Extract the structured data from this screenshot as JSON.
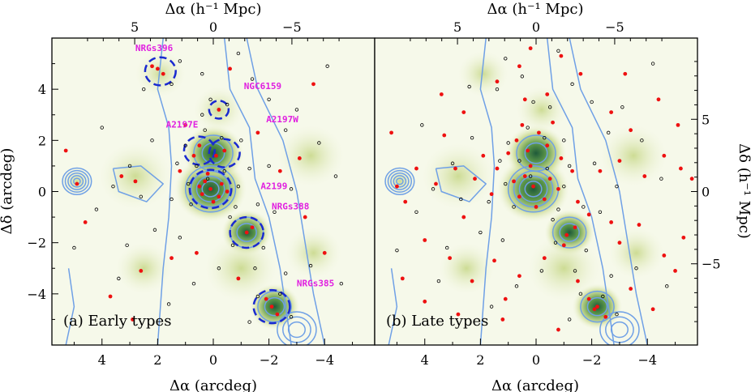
{
  "colors": {
    "background": "#ffffff",
    "density_light": "#eef3d8",
    "density_mid": "#c8d88a",
    "density_dark": "#1f5a3a",
    "contour": "#6fa0e6",
    "group_circle": "#1a2ad0",
    "group_label": "#e020e0",
    "early_or_late_points": "#ee1111",
    "other_points": "#000000"
  },
  "chart_data": [
    {
      "type": "scatter",
      "panel_label": "(a) Early types",
      "xlabel_bottom": "Δα (arcdeg)",
      "xlabel_top": "Δα (h⁻¹ Mpc)",
      "ylabel_left": "Δδ (arcdeg)",
      "xlim": [
        5.8,
        -5.8
      ],
      "ylim": [
        -6.0,
        6.0
      ],
      "x_ticks": [
        4,
        2,
        0,
        -2,
        -4
      ],
      "y_ticks": [
        -4,
        -2,
        0,
        2,
        4
      ],
      "top_ticks": [
        5,
        0,
        -5
      ],
      "top_tick_labels": [
        "5",
        "0",
        "−5"
      ],
      "bottom_tick_labels": [
        "4",
        "2",
        "0",
        "−2",
        "−4"
      ],
      "left_tick_labels": [
        "−4",
        "−2",
        "0",
        "2",
        "4"
      ],
      "groups": [
        {
          "label": "NRGs396",
          "x": 1.9,
          "y": 4.7,
          "r": 0.55
        },
        {
          "label": "NGC6159",
          "x": -0.2,
          "y": 3.2,
          "r": 0.35
        },
        {
          "label": "A2197E",
          "x": 0.5,
          "y": 1.6,
          "r": 0.55
        },
        {
          "label": "A2197W",
          "x": -0.4,
          "y": 1.5,
          "r": 0.55
        },
        {
          "label": "A2199",
          "x": 0.1,
          "y": 0.1,
          "r": 0.75
        },
        {
          "label": "NRGs388",
          "x": -1.2,
          "y": -1.6,
          "r": 0.6
        },
        {
          "label": "NRGs385",
          "x": -2.1,
          "y": -4.5,
          "r": 0.65
        }
      ],
      "group_label_offsets_deg": [
        [
          0.9,
          0.8
        ],
        [
          -0.9,
          0.8
        ],
        [
          1.2,
          0.9
        ],
        [
          -1.5,
          1.2
        ],
        [
          -1.8,
          0.0
        ],
        [
          -0.9,
          0.9
        ],
        [
          -0.9,
          0.8
        ]
      ],
      "points_highlight": [
        [
          0.1,
          0.1
        ],
        [
          0.3,
          0.4
        ],
        [
          -0.2,
          -0.2
        ],
        [
          0.4,
          -0.1
        ],
        [
          -0.3,
          0.3
        ],
        [
          0.2,
          0.7
        ],
        [
          0.0,
          -0.4
        ],
        [
          0.5,
          0.2
        ],
        [
          -0.5,
          0.0
        ],
        [
          0.5,
          1.8
        ],
        [
          0.7,
          1.4
        ],
        [
          -0.4,
          1.6
        ],
        [
          -0.1,
          1.4
        ],
        [
          -1.2,
          -1.6
        ],
        [
          -1.4,
          -1.4
        ],
        [
          -2.1,
          -4.5
        ],
        [
          -2.3,
          -4.8
        ],
        [
          -1.9,
          -4.2
        ],
        [
          2.0,
          4.8
        ],
        [
          1.8,
          4.6
        ],
        [
          2.2,
          4.9
        ],
        [
          -0.2,
          3.2
        ],
        [
          4.9,
          0.3
        ],
        [
          3.3,
          0.6
        ],
        [
          2.8,
          0.4
        ],
        [
          1.2,
          0.8
        ],
        [
          5.3,
          1.6
        ],
        [
          4.6,
          -1.2
        ],
        [
          3.7,
          -4.1
        ],
        [
          2.6,
          -3.1
        ],
        [
          1.5,
          -2.6
        ],
        [
          -0.6,
          4.8
        ],
        [
          -1.6,
          2.3
        ],
        [
          -2.4,
          0.8
        ],
        [
          -3.3,
          -1.0
        ],
        [
          -4.0,
          -2.4
        ],
        [
          -0.9,
          -3.4
        ],
        [
          0.6,
          -2.4
        ],
        [
          1.0,
          2.6
        ],
        [
          -3.1,
          1.3
        ],
        [
          2.9,
          -5.0
        ],
        [
          -3.6,
          4.2
        ]
      ],
      "points_other": [
        [
          0.2,
          0.5
        ],
        [
          -0.4,
          0.8
        ],
        [
          0.8,
          -0.5
        ],
        [
          -0.8,
          -0.6
        ],
        [
          0.9,
          0.3
        ],
        [
          -0.9,
          0.2
        ],
        [
          0.6,
          1.0
        ],
        [
          -0.6,
          -1.0
        ],
        [
          1.3,
          1.1
        ],
        [
          -1.3,
          0.9
        ],
        [
          1.5,
          -0.3
        ],
        [
          -1.6,
          -0.5
        ],
        [
          0.3,
          2.4
        ],
        [
          -0.3,
          2.1
        ],
        [
          1.0,
          1.8
        ],
        [
          -1.0,
          2.0
        ],
        [
          0.1,
          3.6
        ],
        [
          -0.5,
          3.4
        ],
        [
          0.4,
          3.0
        ],
        [
          2.5,
          4.0
        ],
        [
          1.5,
          4.2
        ],
        [
          1.2,
          5.1
        ],
        [
          -1.4,
          4.4
        ],
        [
          -2.0,
          3.6
        ],
        [
          -2.6,
          2.4
        ],
        [
          -2.0,
          1.0
        ],
        [
          -2.8,
          0.1
        ],
        [
          -2.2,
          -0.8
        ],
        [
          -1.8,
          -2.2
        ],
        [
          -0.7,
          -2.1
        ],
        [
          -1.5,
          -3.0
        ],
        [
          -2.6,
          -3.2
        ],
        [
          -2.4,
          -4.0
        ],
        [
          -1.6,
          -4.1
        ],
        [
          -2.8,
          -4.9
        ],
        [
          -1.3,
          -5.1
        ],
        [
          3.0,
          1.0
        ],
        [
          2.6,
          -0.2
        ],
        [
          3.6,
          0.2
        ],
        [
          4.2,
          -0.7
        ],
        [
          2.1,
          -1.5
        ],
        [
          1.2,
          -1.8
        ],
        [
          3.1,
          -2.1
        ],
        [
          4.0,
          2.5
        ],
        [
          2.2,
          2.0
        ],
        [
          -3.8,
          1.9
        ],
        [
          -4.4,
          0.6
        ],
        [
          -3.5,
          -2.9
        ],
        [
          -4.6,
          -3.6
        ],
        [
          -0.2,
          -3.0
        ],
        [
          0.7,
          -3.6
        ],
        [
          -3.0,
          3.2
        ],
        [
          -4.1,
          4.9
        ],
        [
          5.0,
          -2.2
        ],
        [
          3.4,
          -3.4
        ],
        [
          1.6,
          -4.4
        ],
        [
          0.4,
          4.6
        ],
        [
          -0.9,
          5.4
        ]
      ]
    },
    {
      "type": "scatter",
      "panel_label": "(b) Late types",
      "xlabel_bottom": "Δα (arcdeg)",
      "xlabel_top": "Δα (h⁻¹ Mpc)",
      "ylabel_right": "Δδ (h⁻¹ Mpc)",
      "xlim": [
        5.8,
        -5.8
      ],
      "ylim": [
        -6.0,
        6.0
      ],
      "x_ticks": [
        4,
        2,
        0,
        -2,
        -4
      ],
      "top_ticks": [
        5,
        0,
        -5
      ],
      "right_ticks_mpc": [
        -5,
        0,
        5
      ],
      "top_tick_labels": [
        "5",
        "0",
        "−5"
      ],
      "bottom_tick_labels": [
        "4",
        "2",
        "0",
        "−2",
        "−4"
      ],
      "right_tick_labels": [
        "−5",
        "0",
        "5"
      ],
      "points_highlight": [
        [
          0.1,
          0.2
        ],
        [
          0.4,
          0.6
        ],
        [
          -0.3,
          -0.3
        ],
        [
          0.6,
          -0.2
        ],
        [
          -0.5,
          0.5
        ],
        [
          0.2,
          1.0
        ],
        [
          0.0,
          -0.6
        ],
        [
          0.8,
          0.4
        ],
        [
          -0.8,
          0.1
        ],
        [
          0.3,
          1.6
        ],
        [
          0.7,
          2.0
        ],
        [
          -0.4,
          1.8
        ],
        [
          -0.1,
          2.3
        ],
        [
          1.0,
          1.5
        ],
        [
          -0.9,
          1.3
        ],
        [
          0.5,
          2.6
        ],
        [
          -0.6,
          2.7
        ],
        [
          1.4,
          0.9
        ],
        [
          -1.3,
          0.8
        ],
        [
          1.6,
          -0.1
        ],
        [
          -1.5,
          -0.4
        ],
        [
          2.2,
          0.5
        ],
        [
          2.9,
          0.9
        ],
        [
          3.6,
          0.3
        ],
        [
          4.3,
          0.9
        ],
        [
          5.0,
          0.2
        ],
        [
          4.7,
          -0.4
        ],
        [
          -2.3,
          0.8
        ],
        [
          -3.0,
          1.2
        ],
        [
          -3.9,
          0.6
        ],
        [
          -4.6,
          1.4
        ],
        [
          -5.2,
          0.9
        ],
        [
          -5.6,
          0.5
        ],
        [
          -1.1,
          -1.7
        ],
        [
          -1.4,
          -1.4
        ],
        [
          -1.0,
          -2.1
        ],
        [
          -2.2,
          -4.5
        ],
        [
          -2.5,
          -4.9
        ],
        [
          -1.9,
          -4.2
        ],
        [
          -2.1,
          -4.6
        ],
        [
          0.6,
          4.9
        ],
        [
          0.2,
          5.6
        ],
        [
          -0.9,
          5.3
        ],
        [
          1.4,
          4.3
        ],
        [
          -1.6,
          4.6
        ],
        [
          0.4,
          3.6
        ],
        [
          -0.4,
          3.8
        ],
        [
          2.6,
          3.1
        ],
        [
          3.3,
          2.2
        ],
        [
          -2.7,
          3.1
        ],
        [
          -3.4,
          2.4
        ],
        [
          -4.4,
          3.6
        ],
        [
          4.0,
          -1.9
        ],
        [
          3.1,
          -2.6
        ],
        [
          2.3,
          -3.5
        ],
        [
          1.5,
          -2.7
        ],
        [
          0.6,
          -3.3
        ],
        [
          -0.3,
          -2.6
        ],
        [
          -3.0,
          -2.0
        ],
        [
          -3.7,
          -1.3
        ],
        [
          -4.6,
          -2.5
        ],
        [
          -5.3,
          -1.8
        ],
        [
          4.8,
          -3.4
        ],
        [
          4.0,
          -4.3
        ],
        [
          2.8,
          -4.8
        ],
        [
          1.2,
          -5.0
        ],
        [
          -0.8,
          -5.4
        ],
        [
          -3.4,
          -3.8
        ],
        [
          -4.2,
          -4.6
        ],
        [
          -5.0,
          -3.1
        ],
        [
          1.9,
          1.4
        ],
        [
          -1.9,
          -0.9
        ],
        [
          2.6,
          -1.0
        ],
        [
          -2.7,
          -1.2
        ],
        [
          3.4,
          3.8
        ],
        [
          -3.2,
          4.6
        ],
        [
          5.2,
          2.3
        ],
        [
          -5.1,
          2.6
        ],
        [
          1.1,
          -4.2
        ],
        [
          -1.5,
          -3.5
        ]
      ],
      "points_other": [
        [
          0.2,
          0.6
        ],
        [
          -0.4,
          0.9
        ],
        [
          0.8,
          -0.6
        ],
        [
          -0.8,
          -0.7
        ],
        [
          1.1,
          0.3
        ],
        [
          -1.0,
          0.2
        ],
        [
          0.6,
          1.2
        ],
        [
          -0.6,
          -1.1
        ],
        [
          1.3,
          1.2
        ],
        [
          -1.2,
          1.0
        ],
        [
          1.7,
          -0.4
        ],
        [
          -1.7,
          -0.6
        ],
        [
          0.3,
          2.5
        ],
        [
          -0.3,
          2.1
        ],
        [
          1.0,
          1.9
        ],
        [
          -1.0,
          2.0
        ],
        [
          0.1,
          3.5
        ],
        [
          -0.5,
          3.3
        ],
        [
          2.4,
          4.1
        ],
        [
          1.4,
          4.0
        ],
        [
          1.1,
          5.2
        ],
        [
          -1.3,
          4.2
        ],
        [
          -2.0,
          3.5
        ],
        [
          -2.6,
          2.3
        ],
        [
          -2.1,
          1.1
        ],
        [
          -2.9,
          0.2
        ],
        [
          -2.3,
          -0.8
        ],
        [
          -1.8,
          -2.3
        ],
        [
          -0.7,
          -2.0
        ],
        [
          -1.4,
          -3.1
        ],
        [
          -2.7,
          -3.3
        ],
        [
          -2.4,
          -4.1
        ],
        [
          -1.6,
          -4.0
        ],
        [
          -2.9,
          -4.8
        ],
        [
          -1.2,
          -5.0
        ],
        [
          3.0,
          1.1
        ],
        [
          2.7,
          -0.3
        ],
        [
          3.7,
          0.1
        ],
        [
          4.3,
          -0.8
        ],
        [
          2.0,
          -1.6
        ],
        [
          1.2,
          -1.9
        ],
        [
          3.2,
          -2.2
        ],
        [
          4.1,
          2.6
        ],
        [
          2.3,
          2.1
        ],
        [
          -3.8,
          2.0
        ],
        [
          -4.5,
          0.5
        ],
        [
          -3.6,
          -3.0
        ],
        [
          -4.7,
          -3.7
        ],
        [
          -0.2,
          -3.1
        ],
        [
          0.7,
          -3.7
        ],
        [
          -3.1,
          3.3
        ],
        [
          -4.2,
          5.0
        ],
        [
          5.0,
          -2.3
        ],
        [
          3.5,
          -3.5
        ],
        [
          1.6,
          -4.5
        ],
        [
          0.5,
          4.5
        ],
        [
          -0.8,
          5.5
        ]
      ]
    }
  ]
}
